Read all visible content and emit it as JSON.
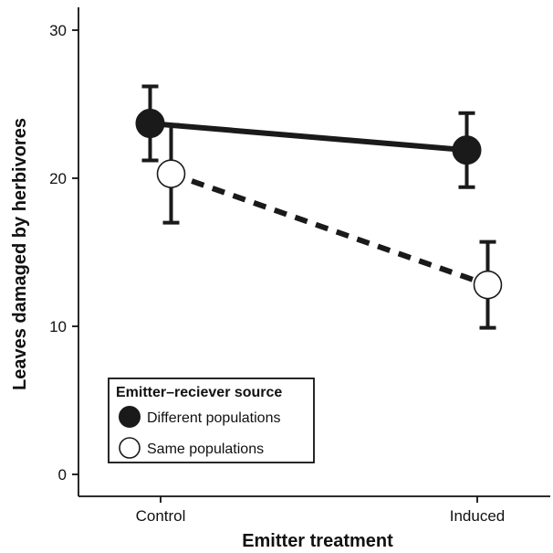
{
  "chart_data": {
    "type": "line",
    "title": "",
    "xlabel": "Emitter treatment",
    "ylabel": "Leaves damaged by herbivores",
    "categories": [
      "Control",
      "Induced"
    ],
    "ylim": [
      0,
      30
    ],
    "yticks": [
      0,
      10,
      20,
      30
    ],
    "grid": false,
    "legend": {
      "title": "Emitter–reciever source",
      "placement": "bottom-left"
    },
    "series": [
      {
        "name": "Different populations",
        "marker": "filled-circle",
        "line": "solid",
        "color": "#1a1a1a",
        "values": [
          23.7,
          21.9
        ],
        "err_low": [
          21.2,
          19.4
        ],
        "err_high": [
          26.2,
          24.4
        ]
      },
      {
        "name": "Same populations",
        "marker": "open-circle",
        "line": "dashed",
        "color": "#1a1a1a",
        "values": [
          20.3,
          12.8
        ],
        "err_low": [
          17.0,
          9.9
        ],
        "err_high": [
          23.6,
          15.7
        ]
      }
    ]
  }
}
